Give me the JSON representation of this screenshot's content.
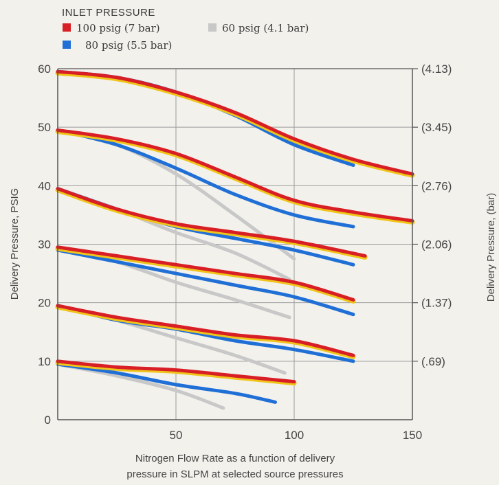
{
  "chart_data": {
    "type": "line",
    "legend": {
      "title": "INLET PRESSURE",
      "placement": "top-left"
    },
    "xlabel": "Nitrogen Flow Rate as a function of delivery pressure in SLPM at selected source pressures",
    "ylabel": "Delivery Pressure, PSIG",
    "y2label": "Delivery Pressure, (bar)",
    "xlim": [
      0,
      150
    ],
    "ylim": [
      0,
      60
    ],
    "x_ticks": [
      "50",
      "100",
      "150"
    ],
    "y_ticks": [
      "0",
      "10",
      "20",
      "30",
      "40",
      "50",
      "60"
    ],
    "y2_ticks": [
      {
        "value": 60,
        "label": "(4.13)"
      },
      {
        "value": 50,
        "label": "(3.45)"
      },
      {
        "value": 40,
        "label": "(2.76)"
      },
      {
        "value": 30,
        "label": "(2.06)"
      },
      {
        "value": 20,
        "label": "(1.37)"
      },
      {
        "value": 10,
        "label": "(.69)"
      }
    ],
    "grid": true,
    "series": [
      {
        "name": "100 psig (7 bar)",
        "color": "#d81f26",
        "accent": "#f0c419",
        "curves": [
          {
            "x": [
              0,
              25,
              50,
              75,
              100,
              125,
              150
            ],
            "y": [
              59.5,
              58.5,
              56,
              52.5,
              48,
              44.5,
              42
            ]
          },
          {
            "x": [
              0,
              25,
              50,
              75,
              100,
              125,
              150
            ],
            "y": [
              49.5,
              48,
              45.5,
              41.5,
              37.5,
              35.5,
              34
            ]
          },
          {
            "x": [
              0,
              25,
              50,
              75,
              100,
              130
            ],
            "y": [
              39.5,
              36,
              33.5,
              32,
              30.5,
              28
            ]
          },
          {
            "x": [
              0,
              25,
              50,
              75,
              100,
              125
            ],
            "y": [
              29.5,
              28,
              26.5,
              25,
              23.5,
              20.5
            ]
          },
          {
            "x": [
              0,
              25,
              50,
              75,
              100,
              125
            ],
            "y": [
              19.5,
              17.5,
              16,
              14.5,
              13.5,
              11
            ]
          },
          {
            "x": [
              0,
              25,
              50,
              75,
              100
            ],
            "y": [
              10,
              9,
              8.5,
              7.5,
              6.5
            ]
          }
        ]
      },
      {
        "name": "80 psig (5.5 bar)",
        "color": "#1f6fd6",
        "curves": [
          {
            "x": [
              0,
              25,
              50,
              75,
              100,
              125
            ],
            "y": [
              59.5,
              58.5,
              56,
              52,
              47,
              43.5
            ]
          },
          {
            "x": [
              0,
              25,
              50,
              75,
              100,
              125
            ],
            "y": [
              49.5,
              47,
              43,
              38.5,
              35,
              33
            ]
          },
          {
            "x": [
              0,
              25,
              50,
              75,
              100,
              125
            ],
            "y": [
              39.5,
              36,
              33,
              31,
              29,
              26.5
            ]
          },
          {
            "x": [
              0,
              25,
              50,
              75,
              100,
              125
            ],
            "y": [
              29,
              27,
              25,
              23,
              21,
              18
            ]
          },
          {
            "x": [
              0,
              25,
              50,
              75,
              100,
              125
            ],
            "y": [
              19.5,
              17,
              15.5,
              13.5,
              12,
              10
            ]
          },
          {
            "x": [
              0,
              25,
              50,
              75,
              92
            ],
            "y": [
              9.5,
              8,
              6,
              4.5,
              3
            ]
          }
        ]
      },
      {
        "name": "60 psig (4.1 bar)",
        "color": "#c8c8c8",
        "curves": [
          {
            "x": [
              0,
              25,
              50,
              75,
              100
            ],
            "y": [
              49.5,
              47,
              42,
              35,
              27.5
            ]
          },
          {
            "x": [
              0,
              25,
              50,
              75,
              98
            ],
            "y": [
              39.5,
              36,
              32,
              28.5,
              24
            ]
          },
          {
            "x": [
              0,
              25,
              50,
              75,
              98
            ],
            "y": [
              29.5,
              27,
              23.5,
              20.5,
              17.5
            ]
          },
          {
            "x": [
              0,
              25,
              50,
              75,
              96
            ],
            "y": [
              19.5,
              17,
              14,
              11,
              8
            ]
          },
          {
            "x": [
              0,
              25,
              50,
              70
            ],
            "y": [
              9.5,
              7.5,
              5,
              2
            ]
          }
        ]
      }
    ]
  }
}
